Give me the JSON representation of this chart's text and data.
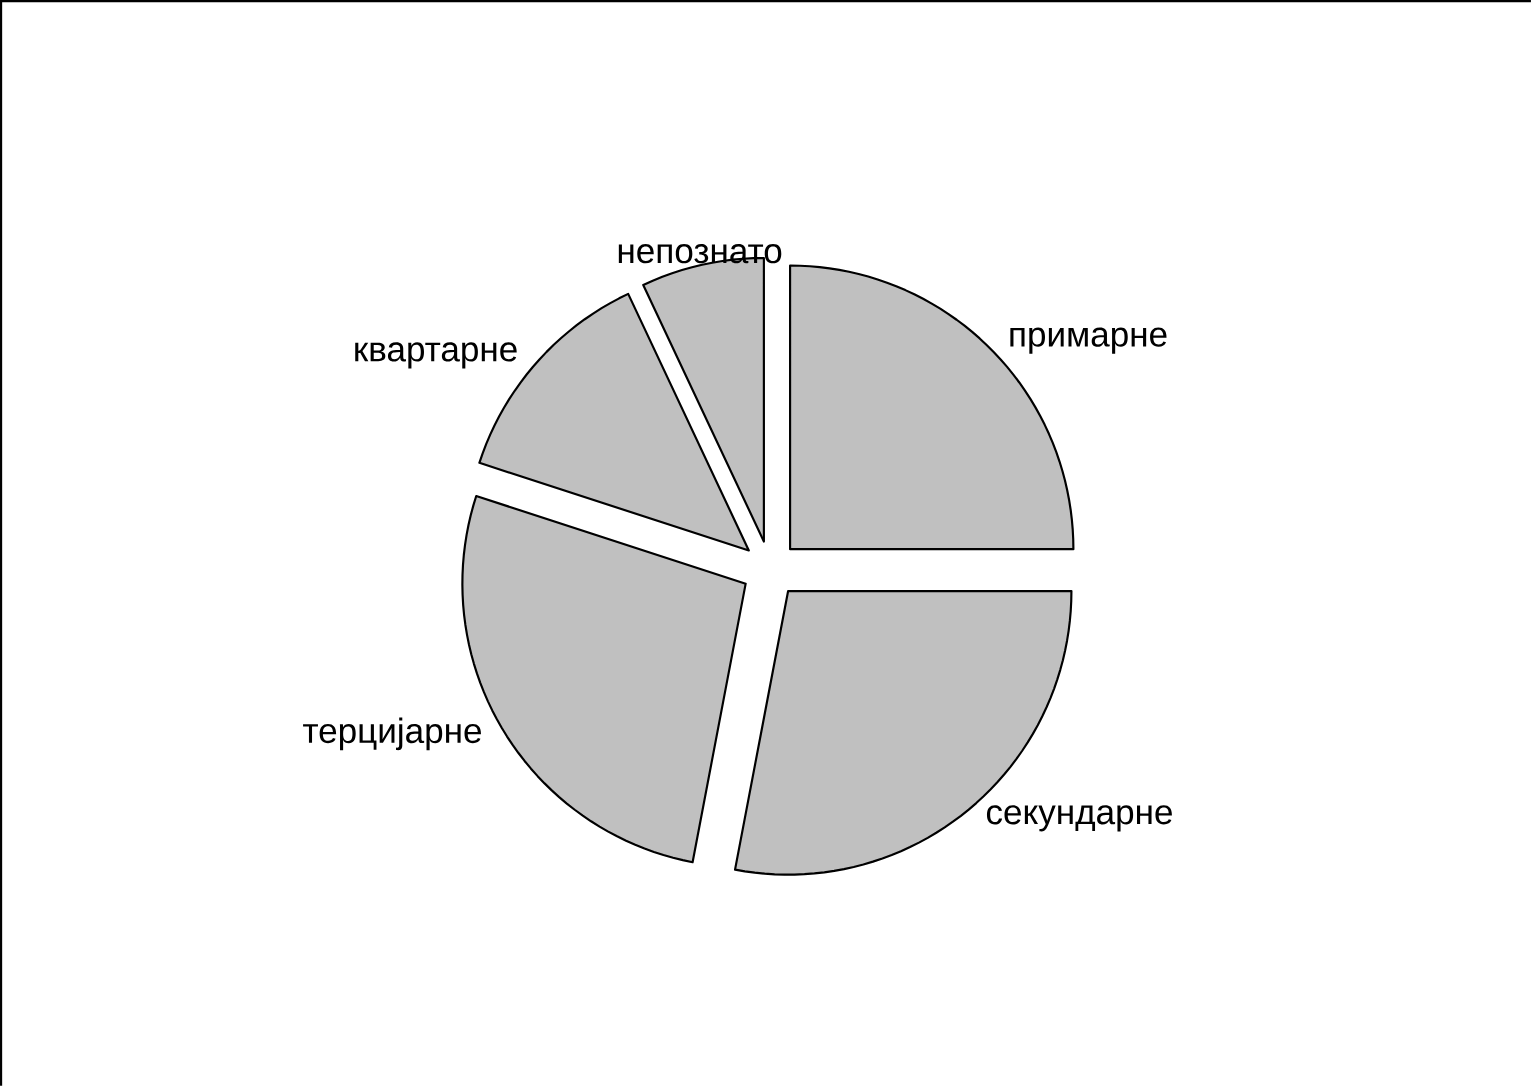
{
  "chart_data": {
    "type": "pie",
    "categories": [
      "примарне",
      "секундарне",
      "терцијарне",
      "квартарне",
      "непознато"
    ],
    "values": [
      25,
      28,
      27,
      13,
      7
    ],
    "colors": [
      "#c0c0c0",
      "#c0c0c0",
      "#c0c0c0",
      "#c0c0c0",
      "#c0c0c0"
    ]
  }
}
